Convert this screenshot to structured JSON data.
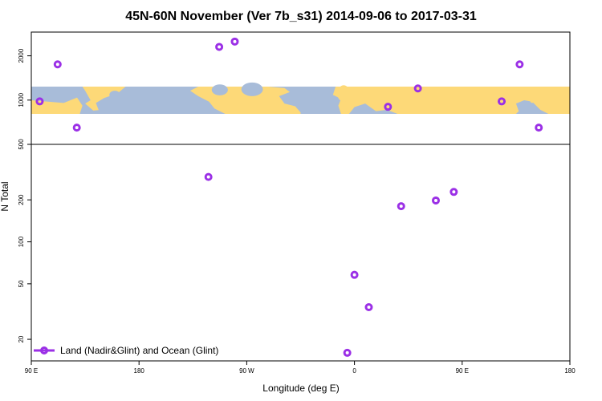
{
  "chart_data": {
    "type": "scatter",
    "title": "45N-60N November (Ver 7b_s31)   2014-09-06 to 2017-03-31",
    "xlabel": "Longitude (deg E)",
    "ylabel": "N Total",
    "x_scale": "linear",
    "x_tick_positions": [
      90,
      180,
      270,
      360,
      450,
      540
    ],
    "x_ticks": [
      "90 E",
      "180",
      "90 W",
      "0",
      "90 E",
      "180"
    ],
    "xlim": [
      90,
      540
    ],
    "bottom_panel": {
      "y_scale": "log",
      "ylim": [
        14,
        500
      ],
      "y_ticks": [
        20,
        50,
        100,
        200,
        500
      ],
      "y_tick_labels": [
        "20",
        "50",
        "100",
        "200",
        "500"
      ]
    },
    "top_panel": {
      "y_scale": "log",
      "ylim": [
        500,
        2900
      ],
      "y_ticks": [
        1000,
        2000
      ],
      "y_tick_labels": [
        "1000",
        "2000"
      ],
      "map_band": {
        "lon_range": [
          90,
          540
        ],
        "colors": {
          "land": "#FDD978",
          "ocean": "#A8BCD9"
        }
      }
    },
    "series": [
      {
        "name": "Land (Nadir&Glint) and Ocean (Glint)",
        "color": "#9B30E6",
        "marker": "open-circle",
        "bottom_points": [
          {
            "x": 238,
            "y": 292
          },
          {
            "x": 354,
            "y": 16
          },
          {
            "x": 360,
            "y": 58
          },
          {
            "x": 372,
            "y": 34
          },
          {
            "x": 399,
            "y": 180
          },
          {
            "x": 428,
            "y": 198
          },
          {
            "x": 443,
            "y": 228
          }
        ],
        "top_points": [
          {
            "x": 97,
            "y": 980
          },
          {
            "x": 112,
            "y": 1750
          },
          {
            "x": 128,
            "y": 650
          },
          {
            "x": 247,
            "y": 2300
          },
          {
            "x": 260,
            "y": 2500
          },
          {
            "x": 388,
            "y": 900
          },
          {
            "x": 413,
            "y": 1200
          },
          {
            "x": 483,
            "y": 980
          },
          {
            "x": 498,
            "y": 1750
          },
          {
            "x": 514,
            "y": 650
          }
        ]
      }
    ],
    "legend": {
      "placement": "bottom-left",
      "label": "Land (Nadir&Glint) and Ocean (Glint)"
    }
  }
}
